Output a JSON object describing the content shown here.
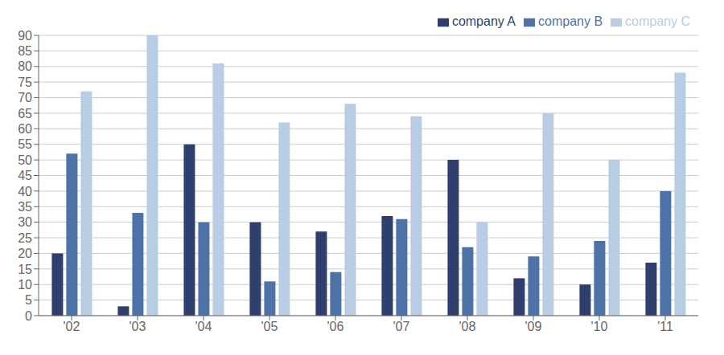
{
  "chart_data": {
    "type": "bar",
    "categories": [
      "'02",
      "'03",
      "'04",
      "'05",
      "'06",
      "'07",
      "'08",
      "'09",
      "'10",
      "'11"
    ],
    "series": [
      {
        "name": "company A",
        "color": "#2e3f6d",
        "values": [
          20,
          3,
          55,
          30,
          27,
          32,
          50,
          12,
          10,
          17
        ]
      },
      {
        "name": "company B",
        "color": "#4d72a8",
        "values": [
          52,
          33,
          30,
          11,
          14,
          31,
          22,
          19,
          24,
          40
        ]
      },
      {
        "name": "company C",
        "color": "#b8cce4",
        "values": [
          72,
          90,
          81,
          62,
          68,
          64,
          30,
          65,
          50,
          78
        ]
      }
    ],
    "ylim": [
      0,
      90
    ],
    "yticks": [
      0,
      5,
      10,
      15,
      20,
      25,
      30,
      35,
      40,
      45,
      50,
      55,
      60,
      65,
      70,
      75,
      80,
      85,
      90
    ],
    "grid": true,
    "legend": "top-right"
  }
}
